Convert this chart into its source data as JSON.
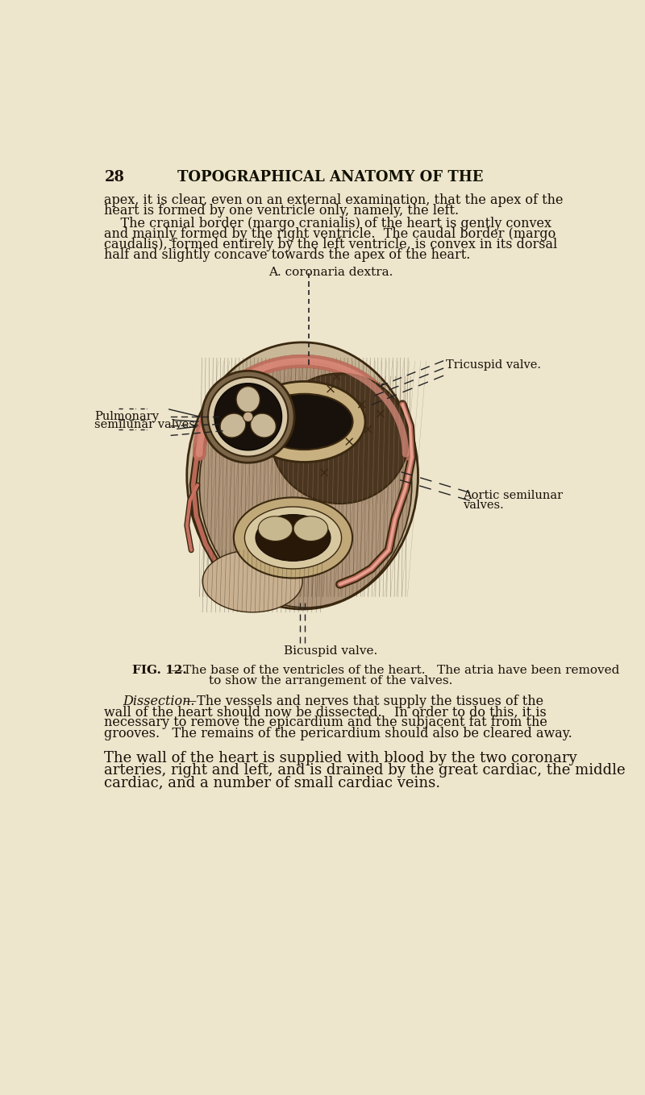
{
  "background_color": "#ede5cc",
  "page_number": "28",
  "header": "TOPOGRAPHICAL ANATOMY OF THE",
  "para1_line1": "apex, it is clear, even on an external examination, that the apex of the",
  "para1_line2": "heart is formed by one ventricle only, namely, the left.",
  "para2_line1": "    The cranial border (margo cranialis) of the heart is gently convex",
  "para2_line2": "and mainly formed by the right ventricle.  The caudal border (margo",
  "para2_line3": "caudalis), formed entirely by the left ventricle, is convex in its dorsal",
  "para2_line4": "half and slightly concave towards the apex of the heart.",
  "label_coronaria": "A. coronaria dextra.",
  "label_tricuspid": "Tricuspid valve.",
  "label_pulmonary": "Pulmonary\nsemilunar valves.",
  "label_aortic": "Aortic semilunar\nvalves.",
  "label_bicuspid": "Bicuspid valve.",
  "fig_caption_bold": "FIG. 12.",
  "fig_caption_rest1": "—The base of the ventricles of the heart.   The atria have been removed",
  "fig_caption_rest2": "to show the arrangement of the valves.",
  "dissection_italic": "Dissection.",
  "dissection_rest1": "—The vessels and nerves that supply the tissues of the",
  "dissection_rest2": "wall of the heart should now be dissected.   In order to do this, it is",
  "dissection_rest3": "necessary to remove the epicardium and the subjacent fat from the",
  "dissection_rest4": "grooves.   The remains of the pericardium should also be cleared away.",
  "last_para_line1": "The wall of the heart is supplied with blood by the two coronary",
  "last_para_line2": "arteries, right and left, and is drained by the great cardiac, the middle",
  "last_para_line3": "cardiac, and a number of small cardiac veins.",
  "text_color": "#1a1008",
  "coronary_color": "#c87060",
  "heart_bg_color": "#d8c4a8",
  "heart_dark_color": "#3a2810",
  "heart_mid_color": "#8a7055"
}
